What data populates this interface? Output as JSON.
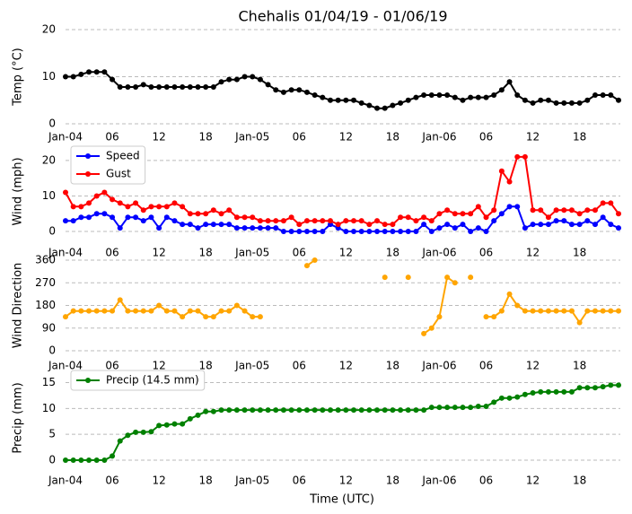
{
  "chart_data": [
    {
      "type": "line",
      "title": "Chehalis 01/04/19 - 01/06/19",
      "ylabel": "Temp (°C)",
      "grid": true,
      "x": [
        "2019-01-04T00",
        "2019-01-04T01",
        "2019-01-04T02",
        "2019-01-04T03",
        "2019-01-04T04",
        "2019-01-04T05",
        "2019-01-04T06",
        "2019-01-04T07",
        "2019-01-04T08",
        "2019-01-04T09",
        "2019-01-04T10",
        "2019-01-04T11",
        "2019-01-04T12",
        "2019-01-04T13",
        "2019-01-04T14",
        "2019-01-04T15",
        "2019-01-04T16",
        "2019-01-04T17",
        "2019-01-04T18",
        "2019-01-04T19",
        "2019-01-04T20",
        "2019-01-04T21",
        "2019-01-04T22",
        "2019-01-04T23",
        "2019-01-05T00",
        "2019-01-05T01",
        "2019-01-05T02",
        "2019-01-05T03",
        "2019-01-05T04",
        "2019-01-05T05",
        "2019-01-05T06",
        "2019-01-05T07",
        "2019-01-05T08",
        "2019-01-05T09",
        "2019-01-05T10",
        "2019-01-05T11",
        "2019-01-05T12",
        "2019-01-05T13",
        "2019-01-05T14",
        "2019-01-05T15",
        "2019-01-05T16",
        "2019-01-05T17",
        "2019-01-05T18",
        "2019-01-05T19",
        "2019-01-05T20",
        "2019-01-05T21",
        "2019-01-05T22",
        "2019-01-05T23",
        "2019-01-06T00",
        "2019-01-06T01",
        "2019-01-06T02",
        "2019-01-06T03",
        "2019-01-06T04",
        "2019-01-06T05",
        "2019-01-06T06",
        "2019-01-06T07",
        "2019-01-06T08",
        "2019-01-06T09",
        "2019-01-06T10",
        "2019-01-06T11",
        "2019-01-06T12",
        "2019-01-06T13",
        "2019-01-06T14",
        "2019-01-06T15",
        "2019-01-06T16",
        "2019-01-06T17",
        "2019-01-06T18",
        "2019-01-06T19",
        "2019-01-06T20",
        "2019-01-06T21",
        "2019-01-06T22",
        "2019-01-06T23"
      ],
      "xlim": [
        "2019-01-04T00",
        "2019-01-06T23"
      ],
      "xticks": [
        {
          "value": "2019-01-04T00",
          "label": "Jan-04"
        },
        {
          "value": "2019-01-04T06",
          "label": "06"
        },
        {
          "value": "2019-01-04T12",
          "label": "12"
        },
        {
          "value": "2019-01-04T18",
          "label": "18"
        },
        {
          "value": "2019-01-05T00",
          "label": "Jan-05"
        },
        {
          "value": "2019-01-05T06",
          "label": "06"
        },
        {
          "value": "2019-01-05T12",
          "label": "12"
        },
        {
          "value": "2019-01-05T18",
          "label": "18"
        },
        {
          "value": "2019-01-06T00",
          "label": "Jan-06"
        },
        {
          "value": "2019-01-06T06",
          "label": "06"
        },
        {
          "value": "2019-01-06T12",
          "label": "12"
        },
        {
          "value": "2019-01-06T18",
          "label": "18"
        }
      ],
      "ylim": [
        0,
        20
      ],
      "yticks": [
        0,
        10,
        20
      ],
      "series": [
        {
          "color": "#000000",
          "values": [
            10,
            10,
            10.5,
            11,
            11,
            11,
            9.4,
            7.8,
            7.8,
            7.8,
            8.3,
            7.8,
            7.8,
            7.8,
            7.8,
            7.8,
            7.8,
            7.8,
            7.8,
            7.8,
            8.9,
            9.4,
            9.4,
            10,
            10,
            9.4,
            8.3,
            7.2,
            6.7,
            7.2,
            7.2,
            6.7,
            6.1,
            5.6,
            5,
            5,
            5,
            5,
            4.4,
            3.9,
            3.3,
            3.3,
            3.9,
            4.4,
            5,
            5.6,
            6.1,
            6.1,
            6.1,
            6.1,
            5.6,
            5,
            5.6,
            5.6,
            5.6,
            6.1,
            7.2,
            8.9,
            6.1,
            5,
            4.4,
            5,
            5,
            4.4,
            4.4,
            4.4,
            4.4,
            5,
            6.1,
            6.1,
            6.1,
            5
          ]
        }
      ]
    },
    {
      "type": "line",
      "ylabel": "Wind (mph)",
      "grid": true,
      "legend": "upper left",
      "x": [
        "2019-01-04T00",
        "2019-01-04T01",
        "2019-01-04T02",
        "2019-01-04T03",
        "2019-01-04T04",
        "2019-01-04T05",
        "2019-01-04T06",
        "2019-01-04T07",
        "2019-01-04T08",
        "2019-01-04T09",
        "2019-01-04T10",
        "2019-01-04T11",
        "2019-01-04T12",
        "2019-01-04T13",
        "2019-01-04T14",
        "2019-01-04T15",
        "2019-01-04T16",
        "2019-01-04T17",
        "2019-01-04T18",
        "2019-01-04T19",
        "2019-01-04T20",
        "2019-01-04T21",
        "2019-01-04T22",
        "2019-01-04T23",
        "2019-01-05T00",
        "2019-01-05T01",
        "2019-01-05T02",
        "2019-01-05T03",
        "2019-01-05T04",
        "2019-01-05T05",
        "2019-01-05T06",
        "2019-01-05T07",
        "2019-01-05T08",
        "2019-01-05T09",
        "2019-01-05T10",
        "2019-01-05T11",
        "2019-01-05T12",
        "2019-01-05T13",
        "2019-01-05T14",
        "2019-01-05T15",
        "2019-01-05T16",
        "2019-01-05T17",
        "2019-01-05T18",
        "2019-01-05T19",
        "2019-01-05T20",
        "2019-01-05T21",
        "2019-01-05T22",
        "2019-01-05T23",
        "2019-01-06T00",
        "2019-01-06T01",
        "2019-01-06T02",
        "2019-01-06T03",
        "2019-01-06T04",
        "2019-01-06T05",
        "2019-01-06T06",
        "2019-01-06T07",
        "2019-01-06T08",
        "2019-01-06T09",
        "2019-01-06T10",
        "2019-01-06T11",
        "2019-01-06T12",
        "2019-01-06T13",
        "2019-01-06T14",
        "2019-01-06T15",
        "2019-01-06T16",
        "2019-01-06T17",
        "2019-01-06T18",
        "2019-01-06T19",
        "2019-01-06T20",
        "2019-01-06T21",
        "2019-01-06T22",
        "2019-01-06T23"
      ],
      "xlim": [
        "2019-01-04T00",
        "2019-01-06T23"
      ],
      "xticks": [
        {
          "value": "2019-01-04T00",
          "label": "Jan-04"
        },
        {
          "value": "2019-01-04T06",
          "label": "06"
        },
        {
          "value": "2019-01-04T12",
          "label": "12"
        },
        {
          "value": "2019-01-04T18",
          "label": "18"
        },
        {
          "value": "2019-01-05T00",
          "label": "Jan-05"
        },
        {
          "value": "2019-01-05T06",
          "label": "06"
        },
        {
          "value": "2019-01-05T12",
          "label": "12"
        },
        {
          "value": "2019-01-05T18",
          "label": "18"
        },
        {
          "value": "2019-01-06T00",
          "label": "Jan-06"
        },
        {
          "value": "2019-01-06T06",
          "label": "06"
        },
        {
          "value": "2019-01-06T12",
          "label": "12"
        },
        {
          "value": "2019-01-06T18",
          "label": "18"
        }
      ],
      "ylim": [
        -1,
        23.5
      ],
      "yticks": [
        0,
        10,
        20
      ],
      "series": [
        {
          "name": "Speed",
          "color": "#0000ff",
          "values": [
            3,
            3,
            4,
            4,
            5,
            5,
            4,
            1,
            4,
            4,
            3,
            4,
            1,
            4,
            3,
            2,
            2,
            1,
            2,
            2,
            2,
            2,
            1,
            1,
            1,
            1,
            1,
            1,
            0,
            0,
            0,
            0,
            0,
            0,
            2,
            1,
            0,
            0,
            0,
            0,
            0,
            0,
            0,
            0,
            0,
            0,
            2,
            0,
            1,
            2,
            1,
            2,
            0,
            1,
            0,
            3,
            5,
            7,
            7,
            1,
            2,
            2,
            2,
            3,
            3,
            2,
            2,
            3,
            2,
            4,
            2,
            1
          ]
        },
        {
          "name": "Gust",
          "color": "#ff0000",
          "values": [
            11,
            7,
            7,
            8,
            10,
            11,
            9,
            8,
            7,
            8,
            6,
            7,
            7,
            7,
            8,
            7,
            5,
            5,
            5,
            6,
            5,
            6,
            4,
            4,
            4,
            3,
            3,
            3,
            3,
            4,
            2,
            3,
            3,
            3,
            3,
            2,
            3,
            3,
            3,
            2,
            3,
            2,
            2,
            4,
            4,
            3,
            4,
            3,
            5,
            6,
            5,
            5,
            5,
            7,
            4,
            6,
            17,
            14,
            21,
            21,
            6,
            6,
            4,
            6,
            6,
            6,
            5,
            6,
            6,
            8,
            8,
            5
          ]
        }
      ]
    },
    {
      "type": "line",
      "ylabel": "Wind Direction",
      "grid": true,
      "x": [
        "2019-01-04T00",
        "2019-01-04T01",
        "2019-01-04T02",
        "2019-01-04T03",
        "2019-01-04T04",
        "2019-01-04T05",
        "2019-01-04T06",
        "2019-01-04T07",
        "2019-01-04T08",
        "2019-01-04T09",
        "2019-01-04T10",
        "2019-01-04T11",
        "2019-01-04T12",
        "2019-01-04T13",
        "2019-01-04T14",
        "2019-01-04T15",
        "2019-01-04T16",
        "2019-01-04T17",
        "2019-01-04T18",
        "2019-01-04T19",
        "2019-01-04T20",
        "2019-01-04T21",
        "2019-01-04T22",
        "2019-01-04T23",
        "2019-01-05T00",
        "2019-01-05T01",
        "2019-01-05T02",
        "2019-01-05T03",
        "2019-01-05T04",
        "2019-01-05T05",
        "2019-01-05T06",
        "2019-01-05T07",
        "2019-01-05T08",
        "2019-01-05T09",
        "2019-01-05T10",
        "2019-01-05T11",
        "2019-01-05T12",
        "2019-01-05T13",
        "2019-01-05T14",
        "2019-01-05T15",
        "2019-01-05T16",
        "2019-01-05T17",
        "2019-01-05T18",
        "2019-01-05T19",
        "2019-01-05T20",
        "2019-01-05T21",
        "2019-01-05T22",
        "2019-01-05T23",
        "2019-01-06T00",
        "2019-01-06T01",
        "2019-01-06T02",
        "2019-01-06T03",
        "2019-01-06T04",
        "2019-01-06T05",
        "2019-01-06T06",
        "2019-01-06T07",
        "2019-01-06T08",
        "2019-01-06T09",
        "2019-01-06T10",
        "2019-01-06T11",
        "2019-01-06T12",
        "2019-01-06T13",
        "2019-01-06T14",
        "2019-01-06T15",
        "2019-01-06T16",
        "2019-01-06T17",
        "2019-01-06T18",
        "2019-01-06T19",
        "2019-01-06T20",
        "2019-01-06T21",
        "2019-01-06T22",
        "2019-01-06T23"
      ],
      "xlim": [
        "2019-01-04T00",
        "2019-01-06T23"
      ],
      "xticks": [
        {
          "value": "2019-01-04T00",
          "label": "Jan-04"
        },
        {
          "value": "2019-01-04T06",
          "label": "06"
        },
        {
          "value": "2019-01-04T12",
          "label": "12"
        },
        {
          "value": "2019-01-04T18",
          "label": "18"
        },
        {
          "value": "2019-01-05T00",
          "label": "Jan-05"
        },
        {
          "value": "2019-01-05T06",
          "label": "06"
        },
        {
          "value": "2019-01-05T12",
          "label": "12"
        },
        {
          "value": "2019-01-05T18",
          "label": "18"
        },
        {
          "value": "2019-01-06T00",
          "label": "Jan-06"
        },
        {
          "value": "2019-01-06T06",
          "label": "06"
        },
        {
          "value": "2019-01-06T12",
          "label": "12"
        },
        {
          "value": "2019-01-06T18",
          "label": "18"
        }
      ],
      "ylim": [
        0,
        360
      ],
      "yticks": [
        0,
        90,
        180,
        270,
        360
      ],
      "series": [
        {
          "color": "#ffa500",
          "values": [
            135,
            158,
            158,
            158,
            158,
            158,
            158,
            202,
            158,
            158,
            158,
            158,
            180,
            158,
            158,
            135,
            158,
            158,
            135,
            135,
            158,
            158,
            180,
            158,
            135,
            135,
            null,
            null,
            null,
            null,
            null,
            338,
            360,
            null,
            null,
            null,
            null,
            null,
            null,
            null,
            null,
            292,
            null,
            null,
            292,
            null,
            68,
            90,
            135,
            292,
            270,
            null,
            292,
            null,
            135,
            135,
            158,
            225,
            180,
            158,
            158,
            158,
            158,
            158,
            158,
            158,
            112,
            158,
            158,
            158,
            158,
            158
          ]
        }
      ]
    },
    {
      "type": "line",
      "ylabel": "Precip (mm)",
      "xlabel": "Time (UTC)",
      "grid": true,
      "legend": "upper left",
      "x": [
        "2019-01-04T00",
        "2019-01-04T01",
        "2019-01-04T02",
        "2019-01-04T03",
        "2019-01-04T04",
        "2019-01-04T05",
        "2019-01-04T06",
        "2019-01-04T07",
        "2019-01-04T08",
        "2019-01-04T09",
        "2019-01-04T10",
        "2019-01-04T11",
        "2019-01-04T12",
        "2019-01-04T13",
        "2019-01-04T14",
        "2019-01-04T15",
        "2019-01-04T16",
        "2019-01-04T17",
        "2019-01-04T18",
        "2019-01-04T19",
        "2019-01-04T20",
        "2019-01-04T21",
        "2019-01-04T22",
        "2019-01-04T23",
        "2019-01-05T00",
        "2019-01-05T01",
        "2019-01-05T02",
        "2019-01-05T03",
        "2019-01-05T04",
        "2019-01-05T05",
        "2019-01-05T06",
        "2019-01-05T07",
        "2019-01-05T08",
        "2019-01-05T09",
        "2019-01-05T10",
        "2019-01-05T11",
        "2019-01-05T12",
        "2019-01-05T13",
        "2019-01-05T14",
        "2019-01-05T15",
        "2019-01-05T16",
        "2019-01-05T17",
        "2019-01-05T18",
        "2019-01-05T19",
        "2019-01-05T20",
        "2019-01-05T21",
        "2019-01-05T22",
        "2019-01-05T23",
        "2019-01-06T00",
        "2019-01-06T01",
        "2019-01-06T02",
        "2019-01-06T03",
        "2019-01-06T04",
        "2019-01-06T05",
        "2019-01-06T06",
        "2019-01-06T07",
        "2019-01-06T08",
        "2019-01-06T09",
        "2019-01-06T10",
        "2019-01-06T11",
        "2019-01-06T12",
        "2019-01-06T13",
        "2019-01-06T14",
        "2019-01-06T15",
        "2019-01-06T16",
        "2019-01-06T17",
        "2019-01-06T18",
        "2019-01-06T19",
        "2019-01-06T20",
        "2019-01-06T21",
        "2019-01-06T22",
        "2019-01-06T23"
      ],
      "xlim": [
        "2019-01-04T00",
        "2019-01-06T23"
      ],
      "xticks": [
        {
          "value": "2019-01-04T00",
          "label": "Jan-04"
        },
        {
          "value": "2019-01-04T06",
          "label": "06"
        },
        {
          "value": "2019-01-04T12",
          "label": "12"
        },
        {
          "value": "2019-01-04T18",
          "label": "18"
        },
        {
          "value": "2019-01-05T00",
          "label": "Jan-05"
        },
        {
          "value": "2019-01-05T06",
          "label": "06"
        },
        {
          "value": "2019-01-05T12",
          "label": "12"
        },
        {
          "value": "2019-01-05T18",
          "label": "18"
        },
        {
          "value": "2019-01-06T00",
          "label": "Jan-06"
        },
        {
          "value": "2019-01-06T06",
          "label": "06"
        },
        {
          "value": "2019-01-06T12",
          "label": "12"
        },
        {
          "value": "2019-01-06T18",
          "label": "18"
        }
      ],
      "ylim": [
        -0.7,
        17
      ],
      "yticks": [
        0,
        5,
        10,
        15
      ],
      "series": [
        {
          "name": "Precip (14.5 mm)",
          "color": "#008000",
          "values": [
            0,
            0,
            0,
            0,
            0,
            0,
            0.8,
            3.7,
            4.8,
            5.4,
            5.4,
            5.5,
            6.7,
            6.8,
            7,
            7,
            8,
            8.7,
            9.4,
            9.4,
            9.7,
            9.7,
            9.7,
            9.7,
            9.7,
            9.7,
            9.7,
            9.7,
            9.7,
            9.7,
            9.7,
            9.7,
            9.7,
            9.7,
            9.7,
            9.7,
            9.7,
            9.7,
            9.7,
            9.7,
            9.7,
            9.7,
            9.7,
            9.7,
            9.7,
            9.7,
            9.7,
            10.2,
            10.2,
            10.2,
            10.2,
            10.2,
            10.2,
            10.4,
            10.4,
            11.2,
            12,
            12,
            12.2,
            12.7,
            13,
            13.2,
            13.2,
            13.2,
            13.2,
            13.2,
            14,
            14,
            14,
            14.2,
            14.5,
            14.5
          ]
        }
      ]
    }
  ]
}
